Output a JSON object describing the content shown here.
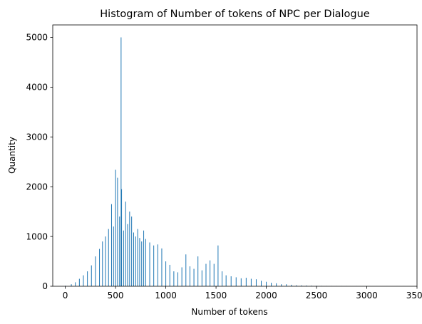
{
  "chart_data": {
    "type": "bar",
    "title": "Histogram of Number of tokens of NPC per Dialogue",
    "xlabel": "Number of tokens",
    "ylabel": "Quantity",
    "xlim": [
      -125,
      3500
    ],
    "ylim": [
      0,
      5250
    ],
    "xticks": [
      0,
      500,
      1000,
      1500,
      2000,
      2500,
      3000,
      3500
    ],
    "yticks": [
      0,
      1000,
      2000,
      3000,
      4000,
      5000
    ],
    "grid": false,
    "bar_color": "#1f77b4",
    "bin_width": 6,
    "series": [
      {
        "x": [
          0,
          60,
          100,
          140,
          180,
          220,
          260,
          300,
          340,
          370,
          400,
          430,
          460,
          480,
          500,
          520,
          540,
          555,
          560,
          580,
          600,
          620,
          640,
          660,
          680,
          700,
          720,
          740,
          760,
          780,
          800,
          840,
          880,
          920,
          960,
          1000,
          1040,
          1080,
          1120,
          1160,
          1200,
          1240,
          1280,
          1320,
          1360,
          1400,
          1440,
          1480,
          1520,
          1560,
          1600,
          1650,
          1700,
          1750,
          1800,
          1850,
          1900,
          1950,
          2000,
          2050,
          2100,
          2150,
          2200,
          2250,
          2300,
          2350,
          2400,
          2450,
          2500,
          2550,
          2600,
          2650,
          2700,
          2750,
          2800,
          2900,
          3000,
          3100,
          3200,
          3300,
          3370
        ],
        "values": [
          10,
          40,
          80,
          150,
          220,
          300,
          420,
          600,
          750,
          900,
          1000,
          1150,
          1650,
          1200,
          2340,
          2180,
          1400,
          5000,
          1950,
          1120,
          1700,
          1250,
          1500,
          1400,
          1080,
          1000,
          1150,
          970,
          900,
          1120,
          950,
          880,
          820,
          840,
          760,
          500,
          430,
          300,
          280,
          380,
          640,
          400,
          350,
          600,
          320,
          450,
          520,
          450,
          820,
          300,
          220,
          200,
          180,
          160,
          170,
          150,
          140,
          110,
          90,
          70,
          60,
          40,
          40,
          30,
          20,
          18,
          15,
          12,
          10,
          8,
          6,
          5,
          4,
          4,
          3,
          3,
          3,
          2,
          2,
          2,
          1
        ]
      }
    ]
  }
}
